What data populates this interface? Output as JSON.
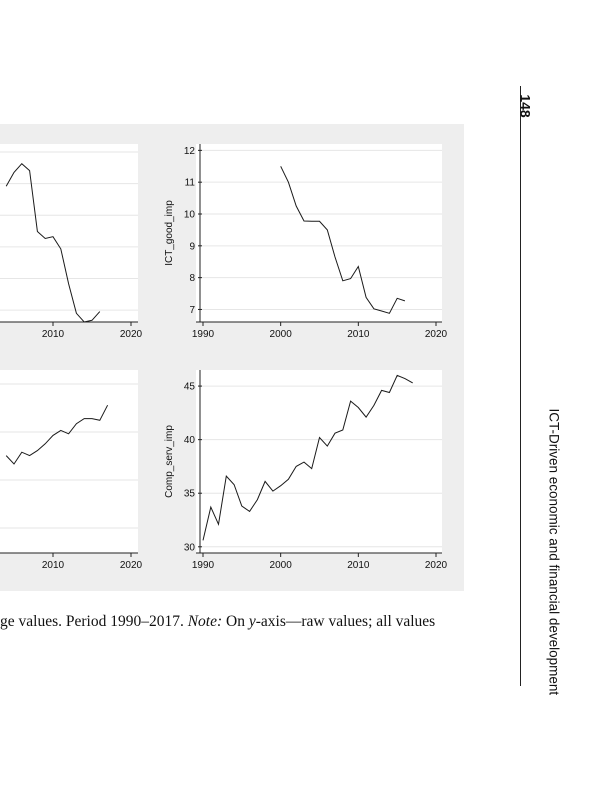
{
  "page_number": "148",
  "running_head": "ICT-Driven economic and financial development",
  "caption": {
    "part1": "ge values. Period 1990–2017. ",
    "note_label": "Note:",
    "part2": " On ",
    "y_italic": "y",
    "part3": "-axis—raw values; all values"
  },
  "chart_data": [
    {
      "type": "line",
      "title": "",
      "xlabel": "",
      "ylabel": "",
      "xlim": [
        1990,
        2020
      ],
      "x_ticks": [
        "2010",
        "2020"
      ],
      "grid": true,
      "series": [
        {
          "x": [
            2004,
            2005,
            2006,
            2007,
            2008,
            2009,
            2010,
            2011,
            2012,
            2013,
            2014,
            2015,
            2016
          ],
          "y": [
            0.78,
            0.86,
            0.91,
            0.87,
            0.52,
            0.48,
            0.49,
            0.42,
            0.22,
            0.05,
            0.0,
            0.01,
            0.06
          ]
        }
      ]
    },
    {
      "type": "line",
      "title": "",
      "xlabel": "",
      "ylabel": "ICT_good_imp",
      "xlim": [
        1990,
        2020
      ],
      "ylim": [
        6.7,
        12.2
      ],
      "x_ticks": [
        "1990",
        "2000",
        "2010",
        "2020"
      ],
      "y_ticks": [
        "7",
        "8",
        "9",
        "10",
        "11",
        "12"
      ],
      "grid": true,
      "series": [
        {
          "x": [
            2000,
            2001,
            2002,
            2003,
            2004,
            2005,
            2006,
            2007,
            2008,
            2009,
            2010,
            2011,
            2012,
            2013,
            2014,
            2015,
            2016
          ],
          "y": [
            11.5,
            11.0,
            10.25,
            9.78,
            9.77,
            9.77,
            9.5,
            8.65,
            7.9,
            7.97,
            8.35,
            7.38,
            7.02,
            6.95,
            6.88,
            7.35,
            7.27
          ]
        }
      ]
    },
    {
      "type": "line",
      "title": "",
      "xlabel": "",
      "ylabel": "",
      "xlim": [
        1990,
        2020
      ],
      "x_ticks": [
        "2010",
        "2020"
      ],
      "grid": true,
      "series": [
        {
          "x": [
            2004,
            2005,
            2006,
            2007,
            2008,
            2009,
            2010,
            2011,
            2012,
            2013,
            2014,
            2015,
            2016,
            2017
          ],
          "y": [
            0.55,
            0.5,
            0.57,
            0.55,
            0.58,
            0.62,
            0.67,
            0.7,
            0.68,
            0.74,
            0.77,
            0.77,
            0.76,
            0.85
          ]
        }
      ]
    },
    {
      "type": "line",
      "title": "",
      "xlabel": "",
      "ylabel": "Comp_serv_imp",
      "xlim": [
        1990,
        2020
      ],
      "ylim": [
        29.7,
        46.5
      ],
      "x_ticks": [
        "1990",
        "2000",
        "2010",
        "2020"
      ],
      "y_ticks": [
        "30",
        "35",
        "40",
        "45"
      ],
      "grid": true,
      "series": [
        {
          "x": [
            1990,
            1991,
            1992,
            1993,
            1994,
            1995,
            1996,
            1997,
            1998,
            1999,
            2000,
            2001,
            2002,
            2003,
            2004,
            2005,
            2006,
            2007,
            2008,
            2009,
            2010,
            2011,
            2012,
            2013,
            2014,
            2015,
            2016,
            2017
          ],
          "y": [
            30.6,
            33.7,
            32.1,
            36.6,
            35.8,
            33.8,
            33.3,
            34.4,
            36.1,
            35.2,
            35.7,
            36.3,
            37.5,
            37.9,
            37.3,
            40.2,
            39.4,
            40.6,
            40.9,
            43.6,
            43.0,
            42.1,
            43.2,
            44.6,
            44.4,
            46.0,
            45.7,
            45.3
          ]
        }
      ]
    }
  ]
}
